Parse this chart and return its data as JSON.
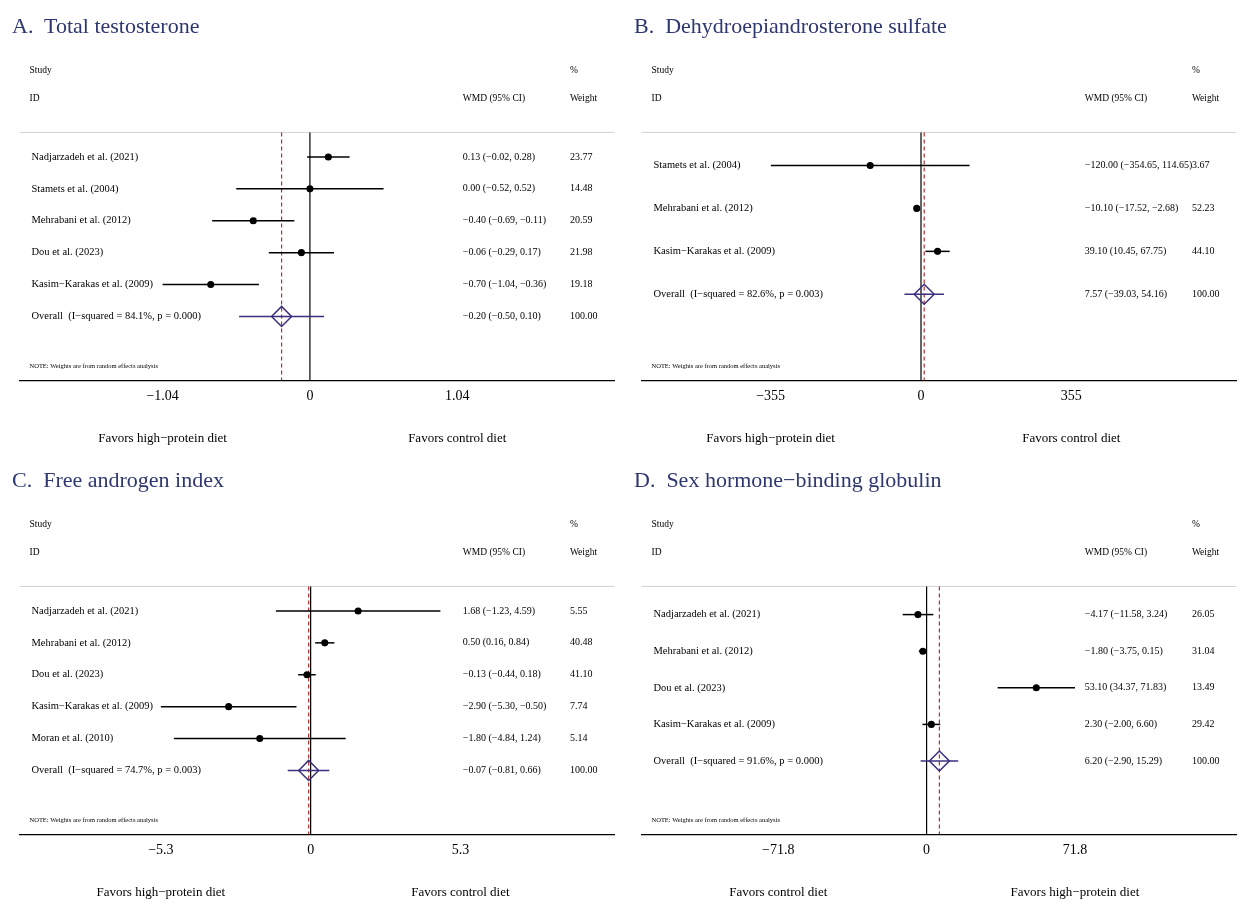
{
  "chart_data": [
    {
      "type": "scatter",
      "orientation": "horizontal",
      "title": "A.  Total testosterone",
      "categories": [
        "Nadjarzadeh et al. (2021)",
        "Stamets et al. (2004)",
        "Mehrabani et al. (2012)",
        "Dou et al. (2023)",
        "Kasim−Karakas et al. (2009)",
        "Overall  (I−squared = 84.1%, p = 0.000)"
      ],
      "series": [
        {
          "color": "#000000",
          "marker": "circle",
          "values": [
            0.13,
            0.0,
            -0.4,
            -0.06,
            -0.7,
            null
          ],
          "errors": [
            [
              -0.02,
              0.28
            ],
            [
              -0.52,
              0.52
            ],
            [
              -0.69,
              -0.11
            ],
            [
              -0.29,
              0.17
            ],
            [
              -1.04,
              -0.36
            ],
            null
          ]
        },
        {
          "color": "#3b2f80",
          "marker": "diamond",
          "values": [
            null,
            null,
            null,
            null,
            null,
            -0.2
          ],
          "errors": [
            null,
            null,
            null,
            null,
            null,
            [
              -0.5,
              0.1
            ]
          ]
        }
      ],
      "xlim": [
        -2.05,
        2.15
      ],
      "xticks": [
        {
          "value": -1.04,
          "label": "−1.04"
        },
        0,
        1.04
      ],
      "ref_lines": [
        {
          "axis": "x",
          "value": 0,
          "color": "#000000"
        },
        {
          "axis": "x",
          "value": -0.2,
          "color": "#b03030",
          "line_style": "dashed"
        }
      ],
      "annotations": [
        "Study",
        "ID",
        "WMD (95% CI)",
        "%",
        "Weight",
        "NOTE: Weights are from random effects analysis",
        "Favors high−protein diet",
        "Favors control diet",
        "0.13 (−0.02, 0.28)",
        "0.00 (−0.52, 0.52)",
        "−0.40 (−0.69, −0.11)",
        "−0.06 (−0.29, 0.17)",
        "−0.70 (−1.04, −0.36)",
        "−0.20 (−0.50, 0.10)",
        "23.77",
        "14.48",
        "20.59",
        "21.98",
        "19.18",
        "100.00"
      ]
    },
    {
      "type": "scatter",
      "orientation": "horizontal",
      "title": "B.  Dehydroepiandrosterone sulfate",
      "categories": [
        "Stamets et al. (2004)",
        "Mehrabani et al. (2012)",
        "Kasim−Karakas et al. (2009)",
        "Overall  (I−squared = 82.6%, p = 0.003)"
      ],
      "series": [
        {
          "color": "#000000",
          "marker": "circle",
          "values": [
            -120.0,
            -10.1,
            39.1,
            null
          ],
          "errors": [
            [
              -354.65,
              114.65
            ],
            [
              -17.52,
              -2.68
            ],
            [
              10.45,
              67.75
            ],
            null
          ]
        },
        {
          "color": "#3b2f80",
          "marker": "diamond",
          "values": [
            null,
            null,
            null,
            7.57
          ],
          "errors": [
            null,
            null,
            null,
            [
              -39.03,
              54.16
            ]
          ]
        }
      ],
      "xlim": [
        -660,
        745
      ],
      "xticks": [
        {
          "value": -355,
          "label": "−355"
        },
        0,
        355
      ],
      "ref_lines": [
        {
          "axis": "x",
          "value": 0,
          "color": "#000000"
        },
        {
          "axis": "x",
          "value": 7.57,
          "color": "#b03030",
          "line_style": "dashed"
        }
      ],
      "annotations": [
        "Study",
        "ID",
        "WMD (95% CI)",
        "%",
        "Weight",
        "NOTE: Weights are from random effects analysis",
        "Favors high−protein diet",
        "Favors control diet",
        "−120.00 (−354.65, 114.65)",
        "−10.10 (−17.52, −2.68)",
        "39.10 (10.45, 67.75)",
        "7.57 (−39.03, 54.16)",
        "3.67",
        "52.23",
        "44.10",
        "100.00"
      ]
    },
    {
      "type": "scatter",
      "orientation": "horizontal",
      "title": "C.  Free androgen index",
      "categories": [
        "Nadjarzadeh et al. (2021)",
        "Mehrabani et al. (2012)",
        "Dou et al. (2023)",
        "Kasim−Karakas et al. (2009)",
        "Moran et al. (2010)",
        "Overall  (I−squared = 74.7%, p = 0.003)"
      ],
      "series": [
        {
          "color": "#000000",
          "marker": "circle",
          "values": [
            1.68,
            0.5,
            -0.13,
            -2.9,
            -1.8,
            null
          ],
          "errors": [
            [
              -1.23,
              4.59
            ],
            [
              0.16,
              0.84
            ],
            [
              -0.44,
              0.18
            ],
            [
              -5.3,
              -0.5
            ],
            [
              -4.84,
              1.24
            ],
            null
          ]
        },
        {
          "color": "#3b2f80",
          "marker": "diamond",
          "values": [
            null,
            null,
            null,
            null,
            null,
            -0.07
          ],
          "errors": [
            null,
            null,
            null,
            null,
            null,
            [
              -0.81,
              0.66
            ]
          ]
        }
      ],
      "xlim": [
        -10.3,
        10.75
      ],
      "xticks": [
        {
          "value": -5.3,
          "label": "−5.3"
        },
        0,
        5.3
      ],
      "ref_lines": [
        {
          "axis": "x",
          "value": 0,
          "color": "#000000"
        },
        {
          "axis": "x",
          "value": -0.07,
          "color": "#b03030",
          "line_style": "dashed"
        }
      ],
      "annotations": [
        "Study",
        "ID",
        "WMD (95% CI)",
        "%",
        "Weight",
        "NOTE: Weights are from random effects analysis",
        "Favors high−protein diet",
        "Favors control diet",
        "1.68 (−1.23, 4.59)",
        "0.50 (0.16, 0.84)",
        "−0.13 (−0.44, 0.18)",
        "−2.90 (−5.30, −0.50)",
        "−1.80 (−4.84, 1.24)",
        "−0.07 (−0.81, 0.66)",
        "5.55",
        "40.48",
        "41.10",
        "7.74",
        "5.14",
        "100.00"
      ]
    },
    {
      "type": "scatter",
      "orientation": "horizontal",
      "title": "D.  Sex hormone−binding globulin",
      "categories": [
        "Nadjarzadeh et al. (2021)",
        "Mehrabani et al. (2012)",
        "Dou et al. (2023)",
        "Kasim−Karakas et al. (2009)",
        "Overall  (I−squared = 91.6%, p = 0.000)"
      ],
      "series": [
        {
          "color": "#000000",
          "marker": "circle",
          "values": [
            -4.17,
            -1.8,
            53.1,
            2.3,
            null
          ],
          "errors": [
            [
              -11.58,
              3.24
            ],
            [
              -3.75,
              0.15
            ],
            [
              34.37,
              71.83
            ],
            [
              -2.0,
              6.6
            ],
            null
          ]
        },
        {
          "color": "#3b2f80",
          "marker": "diamond",
          "values": [
            null,
            null,
            null,
            null,
            6.2
          ],
          "errors": [
            null,
            null,
            null,
            null,
            [
              -2.9,
              15.29
            ]
          ]
        }
      ],
      "xlim": [
        -138,
        150
      ],
      "xticks": [
        {
          "value": -71.8,
          "label": "−71.8"
        },
        0,
        71.8
      ],
      "ref_lines": [
        {
          "axis": "x",
          "value": 0,
          "color": "#000000"
        },
        {
          "axis": "x",
          "value": 6.2,
          "color": "#b03030",
          "line_style": "dashed"
        }
      ],
      "annotations": [
        "Study",
        "ID",
        "WMD (95% CI)",
        "%",
        "Weight",
        "NOTE: Weights are from random effects analysis",
        "Favors control diet",
        "Favors high−protein diet",
        "−4.17 (−11.58, 3.24)",
        "−1.80 (−3.75, 0.15)",
        "53.10 (34.37, 71.83)",
        "2.30 (−2.00, 6.60)",
        "6.20 (−2.90, 15.29)",
        "26.05",
        "31.04",
        "13.49",
        "29.42",
        "100.00"
      ]
    }
  ]
}
